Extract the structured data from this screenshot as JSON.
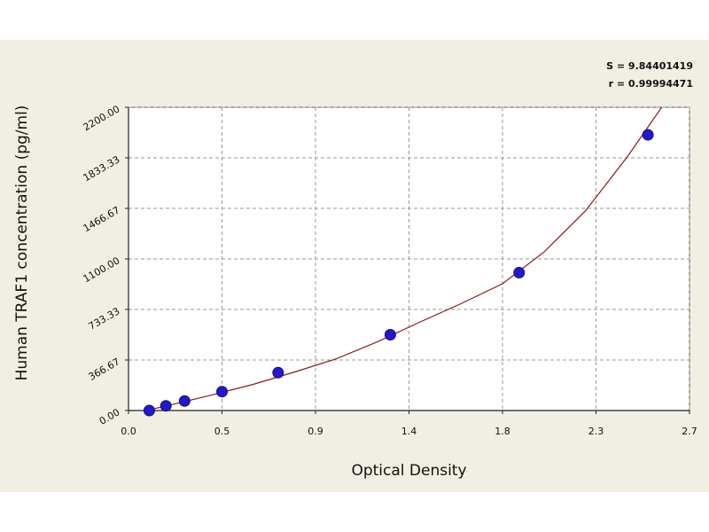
{
  "chart_data": {
    "type": "scatter",
    "title": "",
    "xlabel": "Optical Density",
    "ylabel": "Human TRAF1 concentration (pg/ml)",
    "xlim": [
      0.0,
      2.7
    ],
    "ylim": [
      0,
      2200
    ],
    "x_ticks": [
      0.0,
      0.45,
      0.9,
      1.35,
      1.8,
      2.25,
      2.7
    ],
    "x_tick_labels": [
      "0.0",
      "0.5",
      "0.9",
      "1.4",
      "1.8",
      "2.3",
      "2.7"
    ],
    "y_ticks": [
      0,
      366.67,
      733.33,
      1100,
      1466.67,
      1833.33,
      2200
    ],
    "y_tick_labels": [
      "0.00",
      "366.67",
      "733.33",
      "1100.00",
      "1466.67",
      "1833.33",
      "2200.00"
    ],
    "grid": true,
    "series": [
      {
        "points": [
          {
            "x": 0.1,
            "y": 0
          },
          {
            "x": 0.18,
            "y": 34
          },
          {
            "x": 0.27,
            "y": 69
          },
          {
            "x": 0.45,
            "y": 137
          },
          {
            "x": 0.72,
            "y": 275
          },
          {
            "x": 1.26,
            "y": 550
          },
          {
            "x": 1.88,
            "y": 1000
          },
          {
            "x": 2.5,
            "y": 2000
          }
        ]
      }
    ],
    "fit_curve": {
      "x": [
        0.05,
        0.2,
        0.4,
        0.6,
        0.8,
        1.0,
        1.2,
        1.4,
        1.6,
        1.8,
        2.0,
        2.2,
        2.4,
        2.58
      ],
      "y": [
        -12,
        40,
        112,
        190,
        280,
        375,
        500,
        640,
        775,
        920,
        1150,
        1450,
        1840,
        2230
      ]
    },
    "stats": [
      "S = 9.84401419",
      "r = 0.99994471"
    ],
    "colors": {
      "panel_background": "#f1efe3",
      "plot_background": "#ffffff",
      "grid": "#9a9a9a",
      "curve": "#8b1a1a",
      "marker_fill": "#2418c8",
      "marker_edge": "#1a0f80"
    }
  }
}
